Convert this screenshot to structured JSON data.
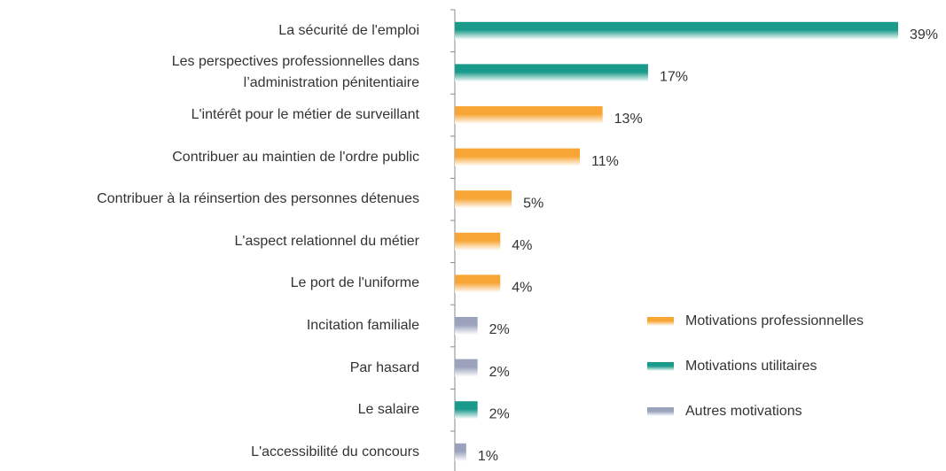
{
  "chart_data": {
    "type": "hbar",
    "categories": [
      "La sécurité de l'emploi",
      "Les perspectives professionnelles dans\nl’administration pénitentiaire",
      "L'intérêt pour le métier de surveillant",
      "Contribuer au maintien de l'ordre public",
      "Contribuer à la réinsertion des personnes détenues",
      "L'aspect relationnel du métier",
      "Le port de l'uniforme",
      "Incitation familiale",
      "Par hasard",
      "Le salaire",
      "L'accessibilité du concours"
    ],
    "series": [
      {
        "name": "Motivations professionnelles",
        "color": "#f7a535",
        "values": [
          null,
          null,
          13,
          11,
          5,
          4,
          4,
          null,
          null,
          null,
          null
        ],
        "value_labels": [
          null,
          null,
          "13%",
          "11%",
          "5%",
          "4%",
          "4%",
          null,
          null,
          null,
          null
        ]
      },
      {
        "name": "Motivations utilitaires",
        "color": "#1a9a8a",
        "values": [
          39,
          17,
          null,
          null,
          null,
          null,
          null,
          null,
          null,
          2,
          null
        ],
        "value_labels": [
          "39%",
          "17%",
          null,
          null,
          null,
          null,
          null,
          null,
          null,
          "2%",
          null
        ]
      },
      {
        "name": "Autres motivations",
        "color": "#9aa2bc",
        "values": [
          null,
          null,
          null,
          null,
          null,
          null,
          null,
          2,
          2,
          null,
          1
        ],
        "value_labels": [
          null,
          null,
          null,
          null,
          null,
          null,
          null,
          "2%",
          "2%",
          null,
          "1%"
        ]
      }
    ],
    "legend": "lower right"
  }
}
